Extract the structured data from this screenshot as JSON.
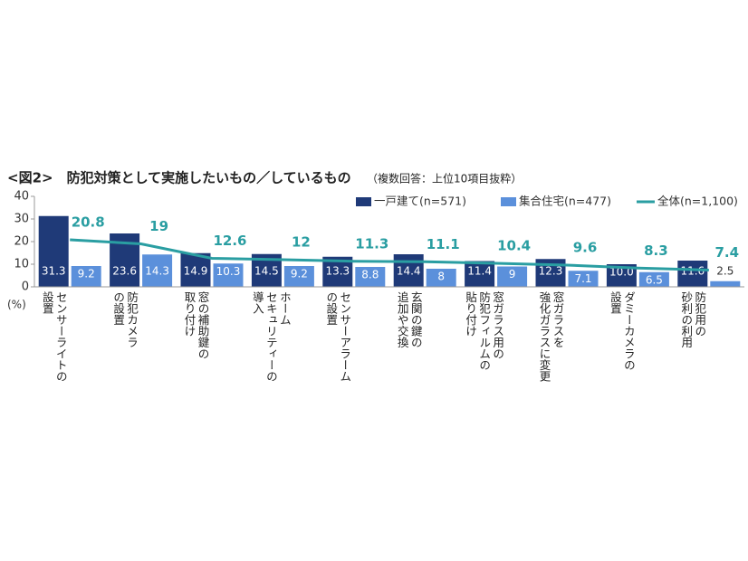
{
  "chart_data": {
    "type": "bar",
    "title": "<図2>　防犯対策として実施したいもの／しているもの",
    "subtitle": "（複数回答：上位10項目抜粋）",
    "ylabel": "(%)",
    "categories": [
      [
        "センサーライトの",
        "設置"
      ],
      [
        "防犯カメラ",
        "の設置"
      ],
      [
        "窓の補助鍵の",
        "取り付け"
      ],
      [
        "ホーム",
        "セキュリティーの",
        "導入"
      ],
      [
        "センサーアラーム",
        "の設置"
      ],
      [
        "玄関の鍵の",
        "追加や交換"
      ],
      [
        "窓ガラス用の",
        "防犯フィルムの",
        "貼り付け"
      ],
      [
        "窓ガラスを",
        "強化ガラスに変更"
      ],
      [
        "ダミーカメラの",
        "設置"
      ],
      [
        "防犯用の",
        "砂利の利用"
      ]
    ],
    "series": [
      {
        "name": "一戸建て(n=571)",
        "type": "bar",
        "color": "#1f3a78",
        "values": [
          31.3,
          23.6,
          14.9,
          14.5,
          13.3,
          14.4,
          11.4,
          12.3,
          10.0,
          11.6
        ],
        "value_labels": [
          "31.3",
          "23.6",
          "14.9",
          "14.5",
          "13.3",
          "14.4",
          "11.4",
          "12.3",
          "10.0",
          "11.6"
        ]
      },
      {
        "name": "集合住宅(n=477)",
        "type": "bar",
        "color": "#5b90db",
        "values": [
          9.2,
          14.3,
          10.3,
          9.2,
          8.8,
          8.0,
          9.0,
          7.1,
          6.5,
          2.5
        ]
      },
      {
        "name": "全体(n=1,100)",
        "type": "line",
        "color": "#2a9ea2",
        "values": [
          20.8,
          19.0,
          12.6,
          12.0,
          11.3,
          11.1,
          10.4,
          9.6,
          8.3,
          7.4
        ]
      }
    ],
    "ylim": [
      0,
      40
    ],
    "yticks": [
      0,
      10,
      20,
      30,
      40
    ],
    "grid": false,
    "legend": "top-right"
  }
}
